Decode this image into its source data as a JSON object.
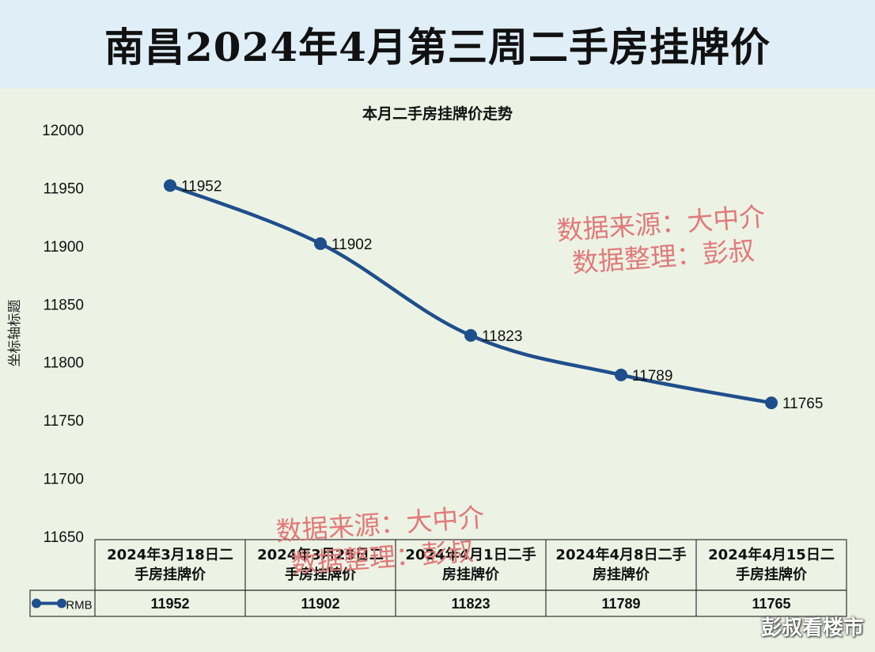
{
  "header": {
    "title": "南昌2024年4月第三周二手房挂牌价"
  },
  "watermark": {
    "line1": "数据来源：大中介",
    "line2": "数据整理：彭叔"
  },
  "footer": {
    "brand": "彭叔看楼市"
  },
  "colors": {
    "line": "#1f4e8c",
    "header_bg": "#dfeef7",
    "panel_bg": "#ecf3e4",
    "watermark": "#e07a7a"
  },
  "chart_data": {
    "type": "line",
    "title": "本月二手房挂牌价走势",
    "ylabel": "坐标轴标题",
    "xlabel": "",
    "ylim": [
      11650,
      12000
    ],
    "yticks": [
      12000,
      11950,
      11900,
      11850,
      11800,
      11750,
      11700,
      11650
    ],
    "categories": [
      "2024年3月18日二手房挂牌价",
      "2024年3月25日二手房挂牌价",
      "2024年4月1日二手房挂牌价",
      "2024年4月8日二手房挂牌价",
      "2024年4月15日二手房挂牌价"
    ],
    "category_lines": [
      [
        "2024年3月18日二",
        "手房挂牌价"
      ],
      [
        "2024年3月25日二",
        "手房挂牌价"
      ],
      [
        "2024年4月1日二手",
        "房挂牌价"
      ],
      [
        "2024年4月8日二手",
        "房挂牌价"
      ],
      [
        "2024年4月15日二",
        "手房挂牌价"
      ]
    ],
    "grid": false,
    "series": [
      {
        "name": "RMB",
        "values": [
          11952,
          11902,
          11823,
          11789,
          11765
        ]
      }
    ]
  }
}
